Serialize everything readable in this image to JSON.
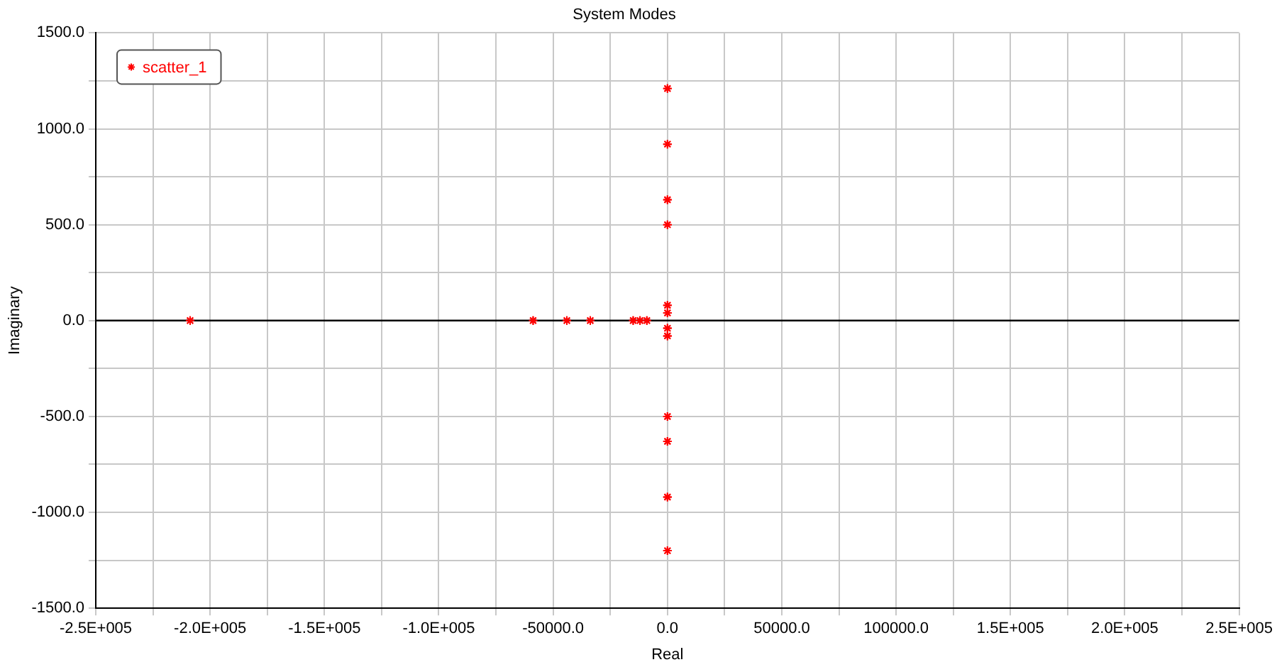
{
  "chart_data": {
    "type": "scatter",
    "title": "System Modes",
    "xlabel": "Real",
    "ylabel": "Imaginary",
    "series": [
      {
        "name": "scatter_1",
        "color": "#ff0000",
        "x": [
          -208750,
          -58750,
          -44000,
          -33750,
          -15000,
          -12000,
          -9000,
          0,
          0,
          0,
          0,
          0,
          0,
          0,
          0,
          0,
          0,
          0,
          0
        ],
        "values": [
          0,
          0,
          0,
          0,
          0,
          0,
          0,
          1210,
          -1200,
          920,
          -920,
          630,
          -630,
          500,
          -500,
          80,
          -80,
          40,
          -40
        ]
      }
    ],
    "xlim": [
      -250000,
      250000
    ],
    "xticks": [
      {
        "value": -250000,
        "label": "-2.5E+005"
      },
      {
        "value": -225000,
        "label": null
      },
      {
        "value": -200000,
        "label": "-2.0E+005"
      },
      {
        "value": -175000,
        "label": null
      },
      {
        "value": -150000,
        "label": "-1.5E+005"
      },
      {
        "value": -125000,
        "label": null
      },
      {
        "value": -100000,
        "label": "-1.0E+005"
      },
      {
        "value": -75000,
        "label": null
      },
      {
        "value": -50000,
        "label": "-50000.0"
      },
      {
        "value": -25000,
        "label": null
      },
      {
        "value": 0,
        "label": "0.0"
      },
      {
        "value": 25000,
        "label": null
      },
      {
        "value": 50000,
        "label": "50000.0"
      },
      {
        "value": 75000,
        "label": null
      },
      {
        "value": 100000,
        "label": "100000.0"
      },
      {
        "value": 125000,
        "label": null
      },
      {
        "value": 150000,
        "label": "1.5E+005"
      },
      {
        "value": 175000,
        "label": null
      },
      {
        "value": 200000,
        "label": "2.0E+005"
      },
      {
        "value": 225000,
        "label": null
      },
      {
        "value": 250000,
        "label": "2.5E+005"
      }
    ],
    "ylim": [
      -1500,
      1500
    ],
    "yticks": [
      {
        "value": -1500,
        "label": "-1500.0"
      },
      {
        "value": -1250,
        "label": null
      },
      {
        "value": -1000,
        "label": "-1000.0"
      },
      {
        "value": -750,
        "label": null
      },
      {
        "value": -500,
        "label": "-500.0"
      },
      {
        "value": -250,
        "label": null
      },
      {
        "value": 0,
        "label": "0.0"
      },
      {
        "value": 250,
        "label": null
      },
      {
        "value": 500,
        "label": "500.0"
      },
      {
        "value": 750,
        "label": null
      },
      {
        "value": 1000,
        "label": "1000.0"
      },
      {
        "value": 1250,
        "label": null
      },
      {
        "value": 1500,
        "label": "1500.0"
      }
    ],
    "ref_lines": [
      {
        "axis": "y",
        "value": 0,
        "color": "#000000"
      }
    ],
    "grid": true,
    "legend": "top left",
    "marker": "cross"
  }
}
